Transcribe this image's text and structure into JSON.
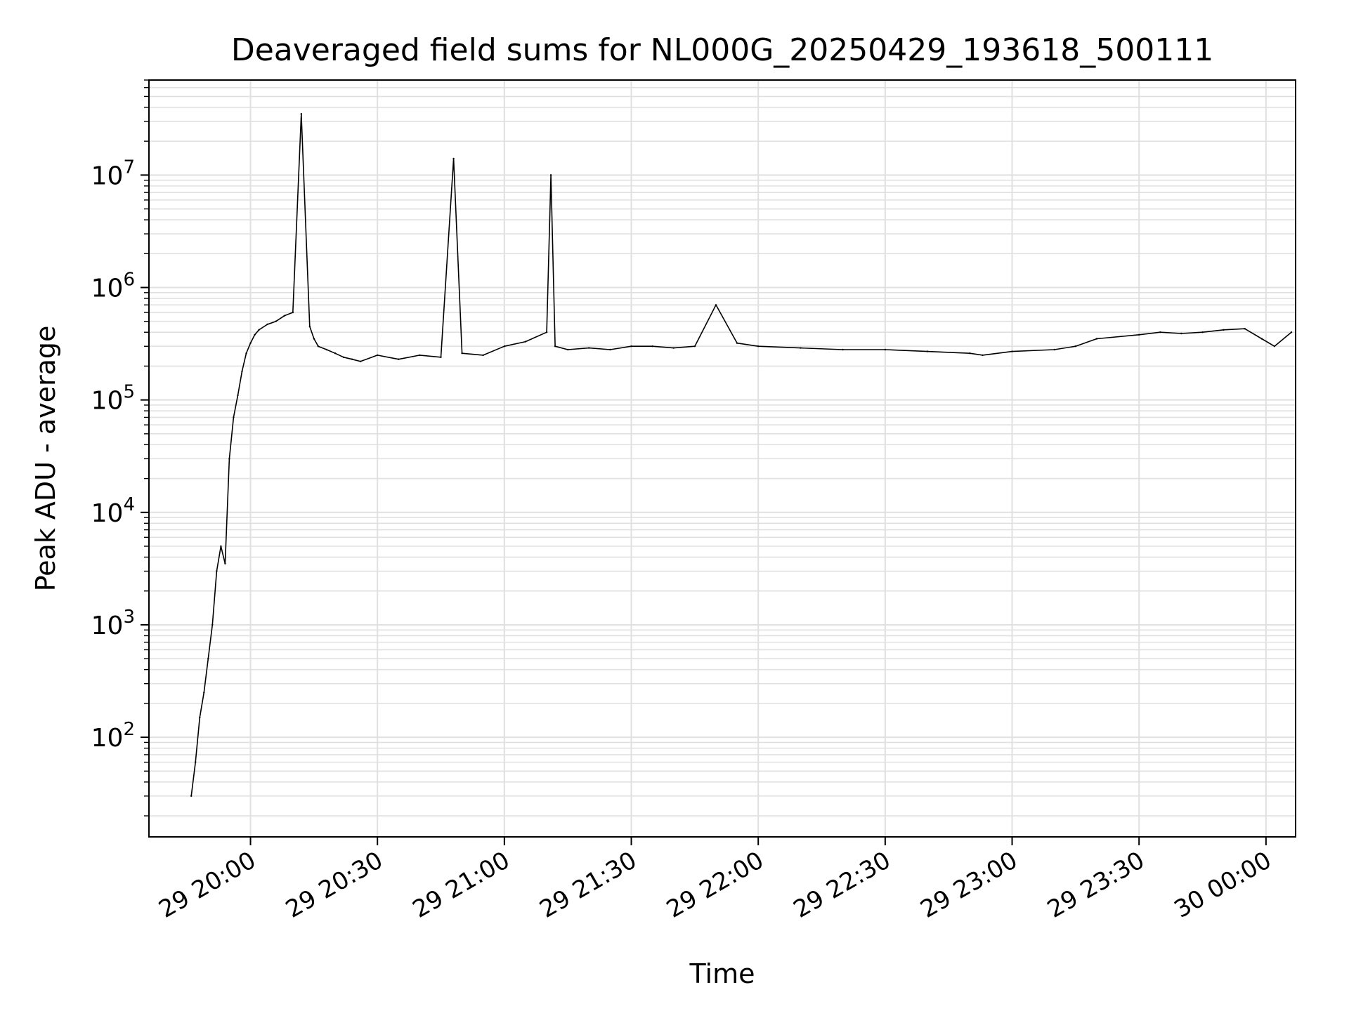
{
  "chart_data": {
    "type": "line",
    "title": "Deaveraged field sums for NL000G_20250429_193618_500111",
    "xlabel": "Time",
    "ylabel": "Peak ADU - average",
    "yscale": "log",
    "grid": true,
    "grid_color": "#e0e0e0",
    "line_color": "#000000",
    "x_ticks": [
      "29 20:00",
      "29 20:30",
      "29 21:00",
      "29 21:30",
      "29 22:00",
      "29 22:30",
      "29 23:00",
      "29 23:30",
      "30 00:00"
    ],
    "y_ticks": [
      {
        "base": "10",
        "exp": "2"
      },
      {
        "base": "10",
        "exp": "3"
      },
      {
        "base": "10",
        "exp": "4"
      },
      {
        "base": "10",
        "exp": "5"
      },
      {
        "base": "10",
        "exp": "6"
      },
      {
        "base": "10",
        "exp": "7"
      }
    ],
    "xlim": [
      "2025-04-29 19:36",
      "2025-04-30 00:07"
    ],
    "ylim": [
      13,
      70000000
    ],
    "series": [
      {
        "x": [
          "2025-04-29 19:46",
          "2025-04-29 19:47",
          "2025-04-29 19:48",
          "2025-04-29 19:49",
          "2025-04-29 19:50",
          "2025-04-29 19:51",
          "2025-04-29 19:52",
          "2025-04-29 19:53",
          "2025-04-29 19:54",
          "2025-04-29 19:55",
          "2025-04-29 19:56",
          "2025-04-29 19:57",
          "2025-04-29 19:58",
          "2025-04-29 19:59",
          "2025-04-29 20:00",
          "2025-04-29 20:01",
          "2025-04-29 20:02",
          "2025-04-29 20:04",
          "2025-04-29 20:06",
          "2025-04-29 20:08",
          "2025-04-29 20:10",
          "2025-04-29 20:12",
          "2025-04-29 20:14",
          "2025-04-29 20:15",
          "2025-04-29 20:16",
          "2025-04-29 20:18",
          "2025-04-29 20:20",
          "2025-04-29 20:22",
          "2025-04-29 20:24",
          "2025-04-29 20:26",
          "2025-04-29 20:30",
          "2025-04-29 20:35",
          "2025-04-29 20:40",
          "2025-04-29 20:45",
          "2025-04-29 20:48",
          "2025-04-29 20:50",
          "2025-04-29 20:55",
          "2025-04-29 21:00",
          "2025-04-29 21:05",
          "2025-04-29 21:10",
          "2025-04-29 21:11",
          "2025-04-29 21:12",
          "2025-04-29 21:15",
          "2025-04-29 21:20",
          "2025-04-29 21:25",
          "2025-04-29 21:30",
          "2025-04-29 21:35",
          "2025-04-29 21:40",
          "2025-04-29 21:45",
          "2025-04-29 21:50",
          "2025-04-29 21:55",
          "2025-04-29 22:00",
          "2025-04-29 22:10",
          "2025-04-29 22:20",
          "2025-04-29 22:30",
          "2025-04-29 22:40",
          "2025-04-29 22:50",
          "2025-04-29 22:53",
          "2025-04-29 23:00",
          "2025-04-29 23:10",
          "2025-04-29 23:15",
          "2025-04-29 23:20",
          "2025-04-29 23:30",
          "2025-04-29 23:35",
          "2025-04-29 23:40",
          "2025-04-29 23:45",
          "2025-04-29 23:50",
          "2025-04-29 23:55",
          "2025-04-29 23:59",
          "2025-04-30 00:02",
          "2025-04-30 00:06"
        ],
        "y": [
          30,
          60,
          150,
          250,
          500,
          1000,
          3000,
          5000,
          3500,
          30000,
          70000,
          110000,
          180000,
          260000,
          320000,
          380000,
          420000,
          470000,
          500000,
          560000,
          600000,
          35000000,
          450000,
          350000,
          300000,
          280000,
          260000,
          240000,
          230000,
          220000,
          250000,
          230000,
          250000,
          240000,
          14000000,
          260000,
          250000,
          300000,
          330000,
          400000,
          10000000,
          300000,
          280000,
          290000,
          280000,
          300000,
          300000,
          290000,
          300000,
          700000,
          320000,
          300000,
          290000,
          280000,
          280000,
          270000,
          260000,
          250000,
          270000,
          280000,
          300000,
          350000,
          380000,
          400000,
          390000,
          400000,
          420000,
          430000,
          350000,
          300000,
          400000
        ]
      }
    ]
  }
}
